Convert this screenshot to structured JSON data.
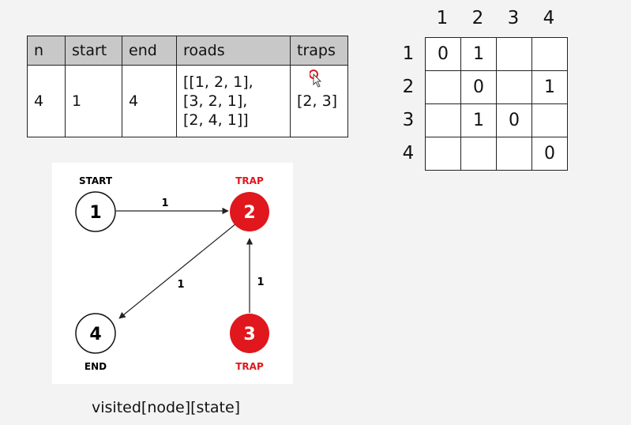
{
  "table": {
    "headers": [
      "n",
      "start",
      "end",
      "roads",
      "traps"
    ],
    "row": {
      "n": "4",
      "start": "1",
      "end": "4",
      "roads": [
        "[[1, 2, 1],",
        "[3, 2, 1],",
        "[2, 4, 1]]"
      ],
      "traps": "[2, 3]"
    }
  },
  "matrix": {
    "col_labels": [
      "1",
      "2",
      "3",
      "4"
    ],
    "row_labels": [
      "1",
      "2",
      "3",
      "4"
    ],
    "cells": [
      [
        "0",
        "1",
        "",
        ""
      ],
      [
        "",
        "0",
        "",
        "1"
      ],
      [
        "",
        "1",
        "0",
        ""
      ],
      [
        "",
        "",
        "",
        "0"
      ]
    ]
  },
  "graph": {
    "nodes": [
      {
        "id": "1",
        "label": "1",
        "tag": "START",
        "trap": false
      },
      {
        "id": "2",
        "label": "2",
        "tag": "TRAP",
        "trap": true
      },
      {
        "id": "3",
        "label": "3",
        "tag": "TRAP",
        "trap": true
      },
      {
        "id": "4",
        "label": "4",
        "tag": "END",
        "trap": false
      }
    ],
    "edges": [
      {
        "from": "1",
        "to": "2",
        "weight": "1"
      },
      {
        "from": "2",
        "to": "4",
        "weight": "1"
      },
      {
        "from": "3",
        "to": "2",
        "weight": "1"
      }
    ],
    "colors": {
      "trap": "#e0171d",
      "node_stroke": "#111111",
      "edge": "#222222"
    }
  },
  "caption": "visited[node][state]",
  "cursor_icon": "mouse-pointer-icon"
}
